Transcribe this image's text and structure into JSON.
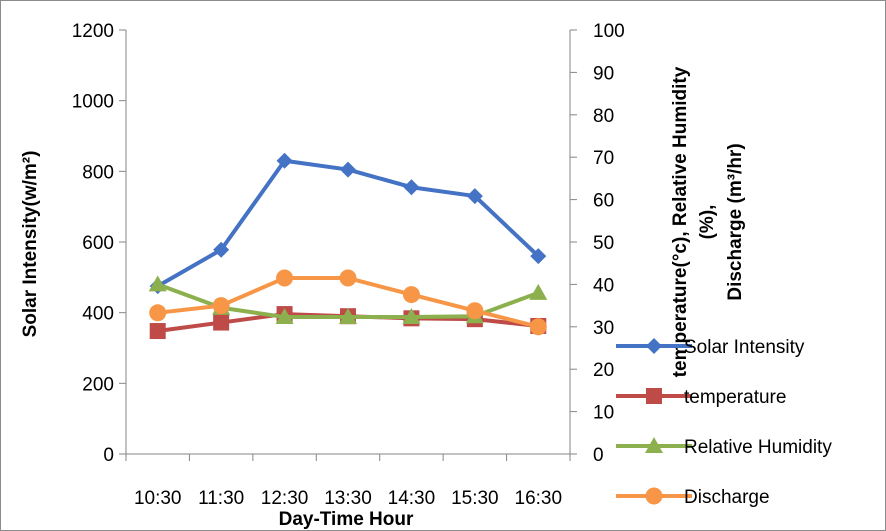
{
  "chart_data": {
    "type": "line",
    "categories": [
      "10:30",
      "11:30",
      "12:30",
      "13:30",
      "14:30",
      "15:30",
      "16:30"
    ],
    "xlabel": "Day-Time Hour",
    "ylabel_left": "Solar Intensity(w/m²)",
    "ylabel_right": [
      "temperature(°c), Relative Humidity",
      "(%),",
      "Discharge (m³/hr)"
    ],
    "ylim_left": [
      0,
      1200
    ],
    "ylim_right": [
      0,
      100
    ],
    "yticks_left": [
      0,
      200,
      400,
      600,
      800,
      1000,
      1200
    ],
    "yticks_right": [
      0,
      10,
      20,
      30,
      40,
      50,
      60,
      70,
      80,
      90,
      100
    ],
    "grid": false,
    "legend_position": "right",
    "series": [
      {
        "name": "Solar Intensity",
        "axis": "left",
        "color": "#4472C4",
        "marker": "diamond",
        "values": [
          475,
          578,
          830,
          805,
          755,
          730,
          560
        ]
      },
      {
        "name": "temperature",
        "axis": "right",
        "color": "#BE4B48",
        "marker": "square",
        "values": [
          29,
          31,
          33,
          32.5,
          32,
          31.8,
          30.2
        ]
      },
      {
        "name": "Relative Humidity",
        "axis": "right",
        "color": "#8CB04E",
        "marker": "triangle",
        "values": [
          40,
          34.5,
          32.3,
          32.3,
          32.3,
          32.5,
          38
        ]
      },
      {
        "name": "Discharge",
        "axis": "right",
        "color": "#F79646",
        "marker": "circle",
        "values": [
          33.3,
          35,
          41.5,
          41.5,
          37.6,
          33.8,
          30
        ]
      }
    ]
  }
}
